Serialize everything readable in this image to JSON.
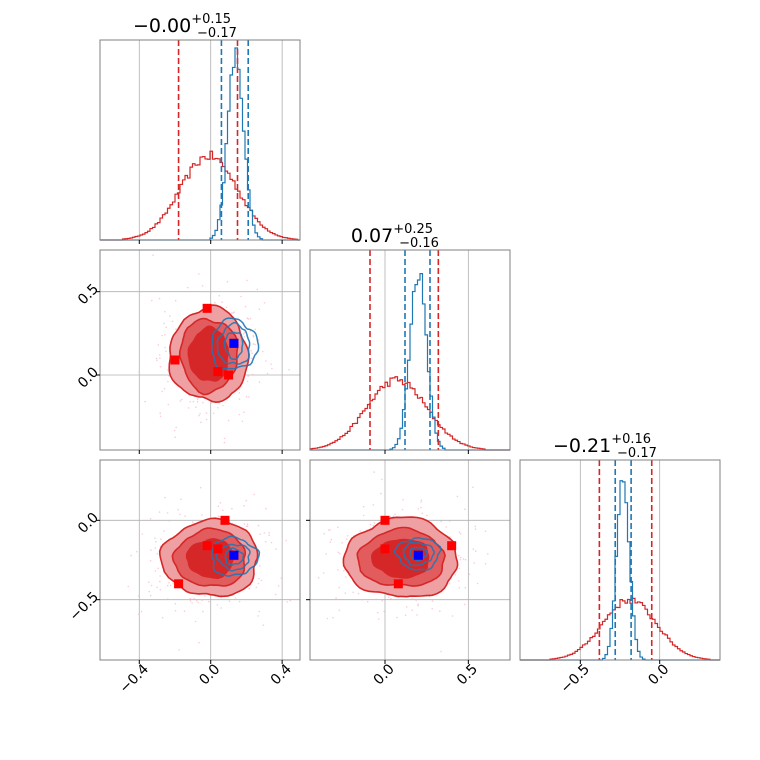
{
  "colors": {
    "reference": "#d62728",
    "posterior": "#1f77b4",
    "injection_marker_ref": "#ff0000",
    "injection_marker_post": "#0000ff",
    "grid": "#b0b0b0",
    "frame": "#808080"
  },
  "chart_data": {
    "type": "corner",
    "params": [
      "p0",
      "p1",
      "p2"
    ],
    "grid": true,
    "titles": [
      {
        "value": "−0.00",
        "plus": "+0.15",
        "minus": "−0.17"
      },
      {
        "value": "0.07",
        "plus": "+0.25",
        "minus": "−0.16"
      },
      {
        "value": "−0.21",
        "plus": "+0.16",
        "minus": "−0.17"
      }
    ],
    "axis_ranges": [
      [
        -0.62,
        0.5
      ],
      [
        -0.45,
        0.75
      ],
      [
        -0.88,
        0.38
      ]
    ],
    "ticks": [
      {
        "values": [
          -0.4,
          0.0,
          0.4
        ],
        "labels": [
          "−0.4",
          "0.0",
          "0.4"
        ]
      },
      {
        "values": [
          0.0,
          0.5
        ],
        "labels": [
          "0.0",
          "0.5"
        ]
      },
      {
        "values": [
          -0.5,
          0.0
        ],
        "labels": [
          "−0.5",
          "0.0"
        ]
      }
    ],
    "marginals": [
      {
        "reference": {
          "mean": -0.01,
          "sd": 0.16,
          "peak": 0.42,
          "quantiles": [
            -0.18,
            0.15
          ]
        },
        "posterior": {
          "mean": 0.14,
          "sd": 0.045,
          "peak": 0.92,
          "quantiles": [
            0.06,
            0.21
          ]
        }
      },
      {
        "reference": {
          "mean": 0.07,
          "sd": 0.18,
          "peak": 0.35,
          "quantiles": [
            -0.09,
            0.32
          ]
        },
        "posterior": {
          "mean": 0.2,
          "sd": 0.05,
          "peak": 0.9,
          "quantiles": [
            0.12,
            0.27
          ]
        }
      },
      {
        "reference": {
          "mean": -0.19,
          "sd": 0.17,
          "peak": 0.3,
          "quantiles": [
            -0.38,
            -0.05
          ]
        },
        "posterior": {
          "mean": -0.23,
          "sd": 0.04,
          "peak": 0.9,
          "quantiles": [
            -0.28,
            -0.18
          ]
        }
      }
    ],
    "pairs": [
      {
        "x": 0,
        "y": 1,
        "reference": {
          "center": [
            -0.01,
            0.12
          ],
          "radii": [
            [
              0.11,
              0.16
            ],
            [
              0.16,
              0.22
            ],
            [
              0.22,
              0.28
            ]
          ]
        },
        "posterior": {
          "center": [
            0.13,
            0.18
          ],
          "radii": [
            [
              0.05,
              0.08
            ],
            [
              0.09,
              0.12
            ],
            [
              0.13,
              0.15
            ]
          ]
        },
        "markers_ref": [
          [
            -0.02,
            0.4
          ],
          [
            -0.2,
            0.09
          ],
          [
            0.04,
            0.02
          ],
          [
            0.1,
            0.0
          ],
          [
            0.13,
            0.19
          ]
        ],
        "marker_post": [
          0.13,
          0.19
        ]
      },
      {
        "x": 0,
        "y": 2,
        "reference": {
          "center": [
            0.0,
            -0.24
          ],
          "radii": [
            [
              0.13,
              0.12
            ],
            [
              0.2,
              0.18
            ],
            [
              0.27,
              0.24
            ]
          ]
        },
        "posterior": {
          "center": [
            0.13,
            -0.23
          ],
          "radii": [
            [
              0.05,
              0.05
            ],
            [
              0.09,
              0.08
            ],
            [
              0.13,
              0.12
            ]
          ]
        },
        "markers_ref": [
          [
            0.08,
            0.0
          ],
          [
            -0.02,
            -0.16
          ],
          [
            0.04,
            -0.18
          ],
          [
            -0.18,
            -0.4
          ],
          [
            0.13,
            -0.22
          ]
        ],
        "marker_post": [
          0.13,
          -0.22
        ]
      },
      {
        "x": 1,
        "y": 2,
        "reference": {
          "center": [
            0.1,
            -0.24
          ],
          "radii": [
            [
              0.17,
              0.12
            ],
            [
              0.26,
              0.18
            ],
            [
              0.34,
              0.25
            ]
          ]
        },
        "posterior": {
          "center": [
            0.2,
            -0.21
          ],
          "radii": [
            [
              0.05,
              0.04
            ],
            [
              0.09,
              0.07
            ],
            [
              0.13,
              0.1
            ]
          ]
        },
        "markers_ref": [
          [
            0.0,
            0.0
          ],
          [
            0.0,
            -0.18
          ],
          [
            0.4,
            -0.16
          ],
          [
            0.08,
            -0.4
          ],
          [
            0.2,
            -0.22
          ]
        ],
        "marker_post": [
          0.2,
          -0.22
        ]
      }
    ]
  }
}
